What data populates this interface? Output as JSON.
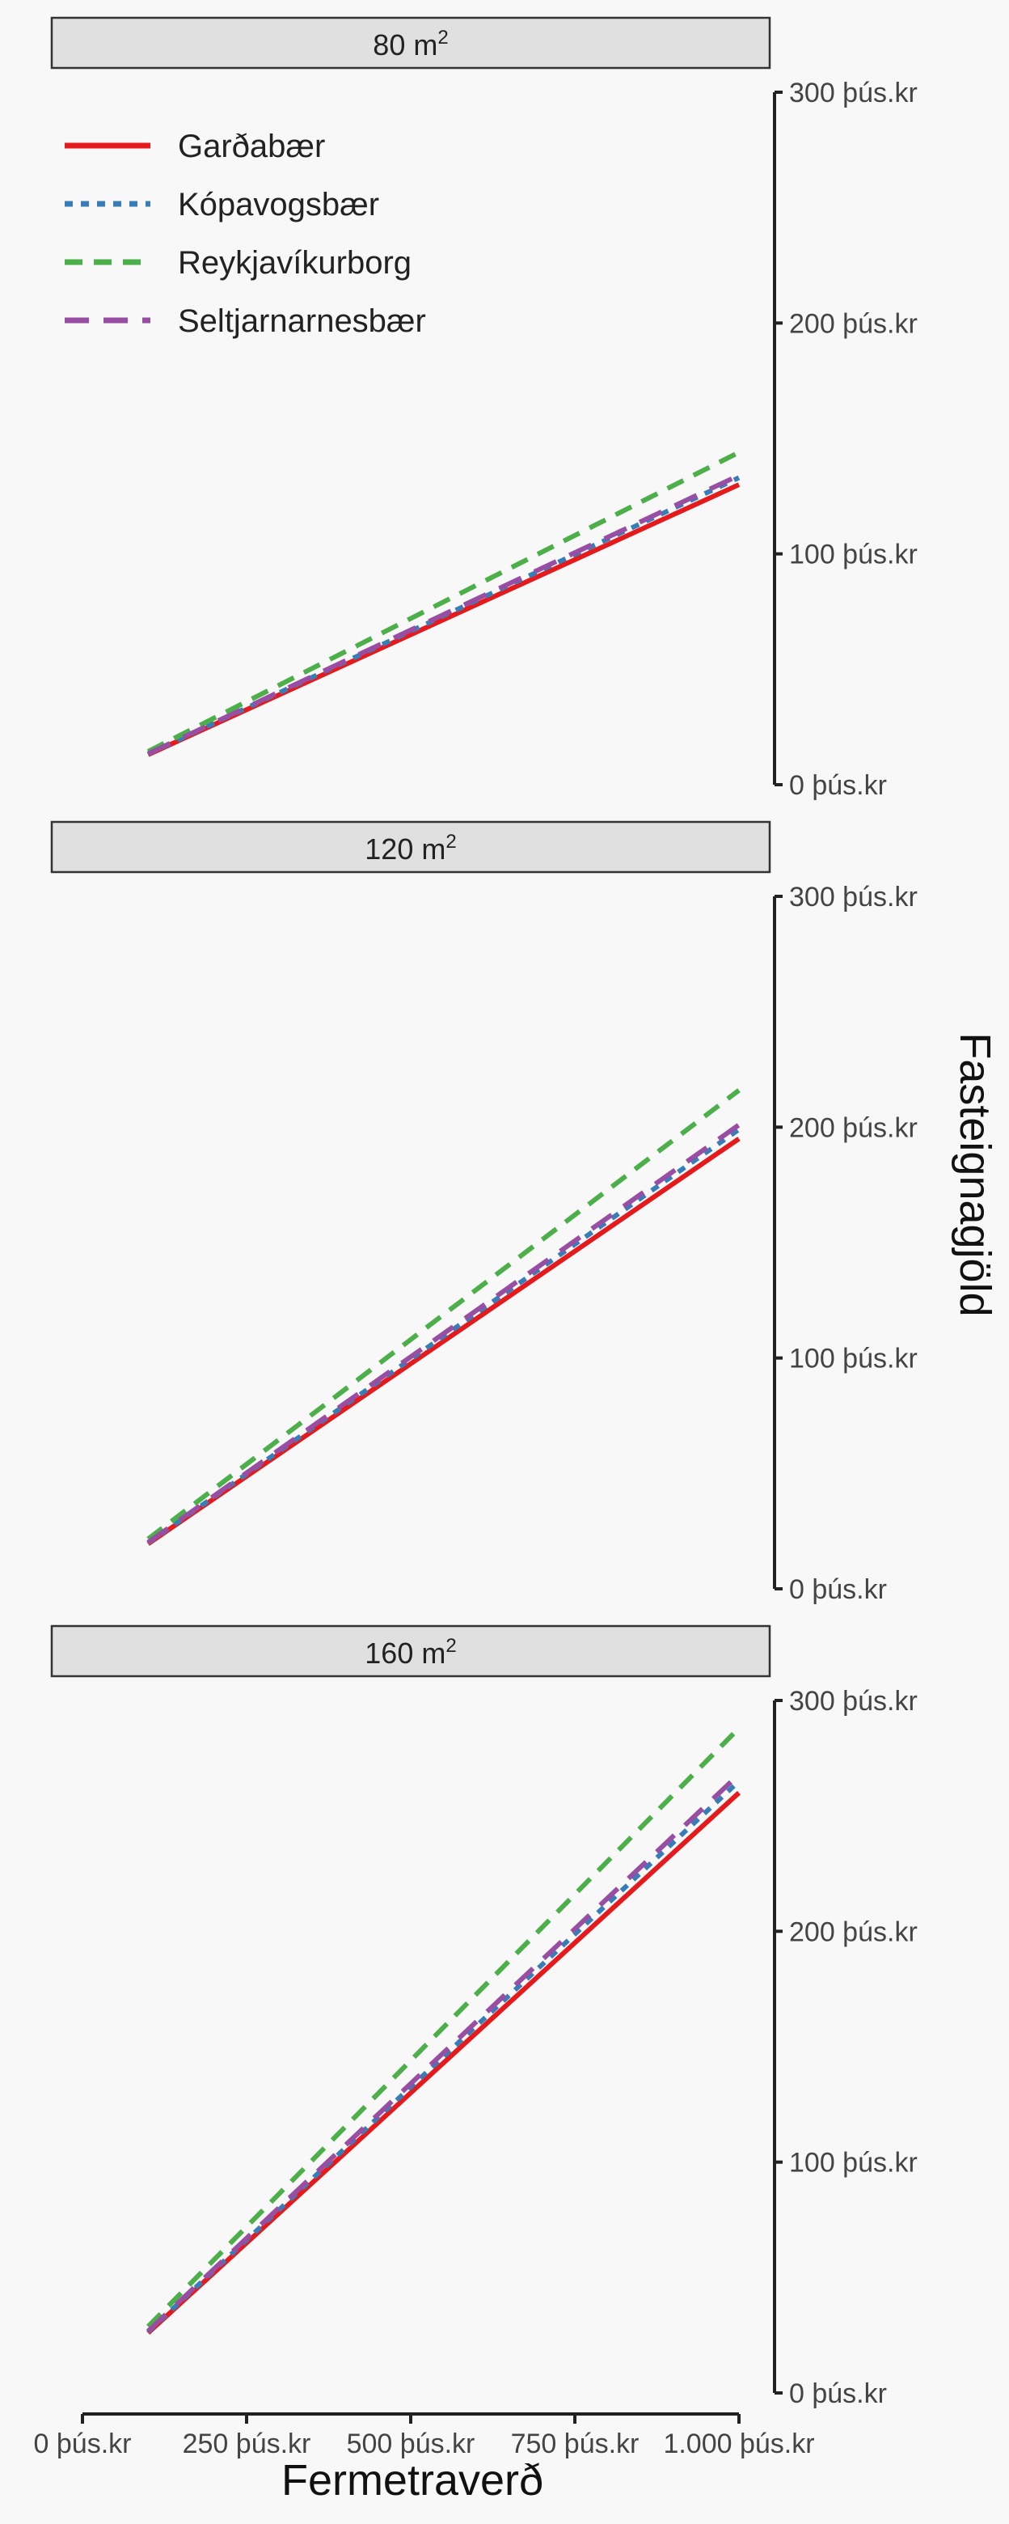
{
  "chart_data": {
    "type": "line",
    "xlabel": "Fermetraverð",
    "ylabel": "Fasteignagjöld",
    "x_ticks": [
      {
        "value": 0,
        "label": "0 þús.kr"
      },
      {
        "value": 250,
        "label": "250 þús.kr"
      },
      {
        "value": 500,
        "label": "500 þús.kr"
      },
      {
        "value": 750,
        "label": "750 þús.kr"
      },
      {
        "value": 1000,
        "label": "1.000 þús.kr"
      }
    ],
    "y_ticks": [
      {
        "value": 0,
        "label": "0 þús.kr"
      },
      {
        "value": 100,
        "label": "100 þús.kr"
      },
      {
        "value": 200,
        "label": "200 þús.kr"
      },
      {
        "value": 300,
        "label": "300 þús.kr"
      }
    ],
    "xlim": [
      0,
      1000
    ],
    "ylim": [
      0,
      300
    ],
    "legend_position": "top-left",
    "series_styles": [
      {
        "name": "Garðabær",
        "color": "#e41a1c",
        "dash": "solid"
      },
      {
        "name": "Kópavogsbær",
        "color": "#377eb8",
        "dash": "dotted"
      },
      {
        "name": "Reykjavíkurborg",
        "color": "#4daf4a",
        "dash": "dashed"
      },
      {
        "name": "Seltjarnarnesbær",
        "color": "#984ea3",
        "dash": "longdash"
      }
    ],
    "panels": [
      {
        "strip": "80 m",
        "strip_sup": "2",
        "x": [
          100,
          1000
        ],
        "series": [
          {
            "name": "Garðabær",
            "values": [
              13,
              130
            ]
          },
          {
            "name": "Kópavogsbær",
            "values": [
              13.3,
              133
            ]
          },
          {
            "name": "Reykjavíkurborg",
            "values": [
              14.4,
              144
            ]
          },
          {
            "name": "Seltjarnarnesbær",
            "values": [
              13.4,
              134
            ]
          }
        ]
      },
      {
        "strip": "120 m",
        "strip_sup": "2",
        "x": [
          100,
          1000
        ],
        "series": [
          {
            "name": "Garðabær",
            "values": [
              19.5,
              195
            ]
          },
          {
            "name": "Kópavogsbær",
            "values": [
              19.9,
              199
            ]
          },
          {
            "name": "Reykjavíkurborg",
            "values": [
              21.6,
              216
            ]
          },
          {
            "name": "Seltjarnarnesbær",
            "values": [
              20.1,
              201
            ]
          }
        ]
      },
      {
        "strip": "160 m",
        "strip_sup": "2",
        "x": [
          100,
          1000
        ],
        "series": [
          {
            "name": "Garðabær",
            "values": [
              26,
              260
            ]
          },
          {
            "name": "Kópavogsbær",
            "values": [
              26.5,
              265
            ]
          },
          {
            "name": "Reykjavíkurborg",
            "values": [
              28.8,
              288
            ]
          },
          {
            "name": "Seltjarnarnesbær",
            "values": [
              26.8,
              268
            ]
          }
        ]
      }
    ]
  }
}
